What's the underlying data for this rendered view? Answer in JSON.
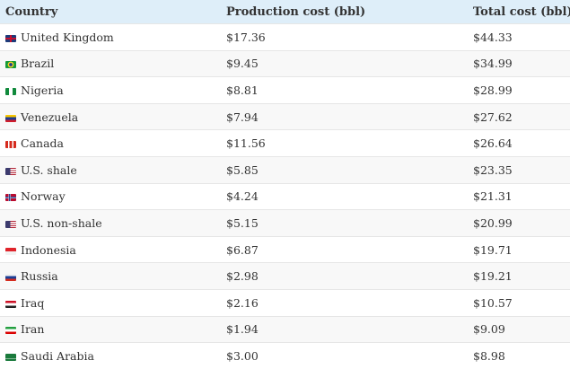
{
  "table": {
    "headers": [
      "Country",
      "Production cost (bbl)",
      "Total cost (bbl)*"
    ],
    "rows": [
      {
        "country": "United Kingdom",
        "flag": "flag-uk",
        "production": "$17.36",
        "total": "$44.33"
      },
      {
        "country": "Brazil",
        "flag": "flag-brazil",
        "production": "$9.45",
        "total": "$34.99"
      },
      {
        "country": "Nigeria",
        "flag": "flag-nigeria",
        "production": "$8.81",
        "total": "$28.99"
      },
      {
        "country": "Venezuela",
        "flag": "flag-venezuela",
        "production": "$7.94",
        "total": "$27.62"
      },
      {
        "country": "Canada",
        "flag": "flag-canada",
        "production": "$11.56",
        "total": "$26.64"
      },
      {
        "country": "U.S. shale",
        "flag": "flag-usa",
        "production": "$5.85",
        "total": "$23.35"
      },
      {
        "country": "Norway",
        "flag": "flag-norway",
        "production": "$4.24",
        "total": "$21.31"
      },
      {
        "country": "U.S. non-shale",
        "flag": "flag-usa",
        "production": "$5.15",
        "total": "$20.99"
      },
      {
        "country": "Indonesia",
        "flag": "flag-indonesia",
        "production": "$6.87",
        "total": "$19.71"
      },
      {
        "country": "Russia",
        "flag": "flag-russia",
        "production": "$2.98",
        "total": "$19.21"
      },
      {
        "country": "Iraq",
        "flag": "flag-iraq",
        "production": "$2.16",
        "total": "$10.57"
      },
      {
        "country": "Iran",
        "flag": "flag-iran",
        "production": "$1.94",
        "total": "$9.09"
      },
      {
        "country": "Saudi Arabia",
        "flag": "flag-saudi-arabia",
        "production": "$3.00",
        "total": "$8.98"
      }
    ]
  },
  "flag_styles": {
    "flag-uk": "linear-gradient(90deg,transparent 42%,#c8102e 42%,#c8102e 58%,transparent 58%),linear-gradient(0deg,#1d3b7a 35%,#c8102e 35%,#c8102e 65%,#1d3b7a 65%)",
    "flag-brazil": "radial-gradient(circle,#1e3f8f 25%,#f4d21f 27%,#f4d21f 45%,#169b3b 47%)",
    "flag-nigeria": "linear-gradient(90deg,#118a3c 33%,#fff 33%,#fff 66%,#118a3c 66%)",
    "flag-venezuela": "linear-gradient(180deg,#f7c600 33%,#1d3b8f 33%,#1d3b8f 66%,#d01c2b 66%)",
    "flag-canada": "linear-gradient(90deg,#d52b1e 25%,#fff 25%,#fff 38%,#d52b1e 38%,#d52b1e 62%,#fff 62%,#fff 75%,#d52b1e 75%)",
    "flag-usa": "linear-gradient(90deg,#3c3b6e 45%,transparent 45%),repeating-linear-gradient(180deg,#b22234 0,#b22234 1.2px,#fff 1.2px,#fff 2.4px)",
    "flag-norway": "linear-gradient(90deg,transparent 30%,#fff 30%,#1c3c8c 36%,#1c3c8c 44%,#fff 44%,#fff 50%,transparent 50%),linear-gradient(180deg,#ba0c2f 35%,#fff 35%,#1c3c8c 42%,#1c3c8c 58%,#fff 58%,#fff 65%,#ba0c2f 65%)",
    "flag-indonesia": "linear-gradient(180deg,#e0242b 50%,#f2f2f2 50%)",
    "flag-russia": "linear-gradient(180deg,#f2f2f2 33%,#1c3f95 33%,#1c3f95 66%,#d52b1e 66%)",
    "flag-iraq": "linear-gradient(180deg,#ce1126 33%,#fff 33%,#fff 66%,#222 66%)",
    "flag-iran": "linear-gradient(180deg,#239f40 33%,#fff 33%,#fff 66%,#da0000 66%)",
    "flag-saudi-arabia": "linear-gradient(180deg,#1a7a3c 60%,#e8f1ea 60%,#e8f1ea 70%,#1a7a3c 70%)"
  },
  "colors": {
    "header_bg": "#deeef9",
    "row_alt_bg": "#f8f8f8"
  }
}
